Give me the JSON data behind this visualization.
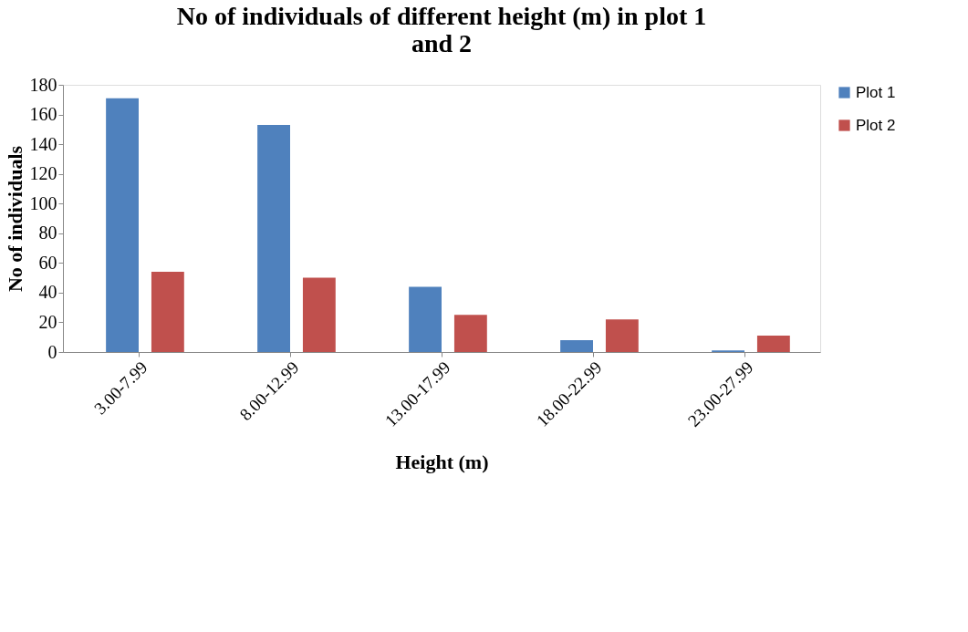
{
  "chart_data": {
    "type": "bar",
    "title": "No of individuals of different height (m) in plot 1 and 2",
    "xlabel": "Height (m)",
    "ylabel": "No of individuals",
    "categories": [
      "3.00-7.99",
      "8.00-12.99",
      "13.00-17.99",
      "18.00-22.99",
      "23.00-27.99"
    ],
    "series": [
      {
        "name": "Plot 1",
        "color": "#4f81bd",
        "values": [
          171,
          153,
          44,
          8,
          1
        ]
      },
      {
        "name": "Plot 2",
        "color": "#c0504d",
        "values": [
          54,
          50,
          25,
          22,
          11
        ]
      }
    ],
    "ylim": [
      0,
      180
    ],
    "yticks": [
      0,
      20,
      40,
      60,
      80,
      100,
      120,
      140,
      160,
      180
    ],
    "grid": false,
    "legend": "right"
  }
}
